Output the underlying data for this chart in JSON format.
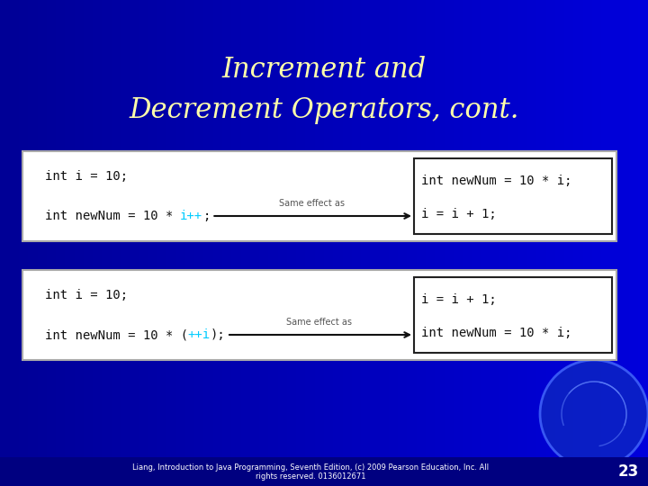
{
  "title_line1": "Increment and",
  "title_line2": "Decrement Operators, cont.",
  "title_color": "#FFFFAA",
  "bg_color_left": "#0000CC",
  "bg_color_right": "#0000FF",
  "footer_bg": "#000080",
  "footer_text": "Liang, Introduction to Java Programming, Seventh Edition, (c) 2009 Pearson Education, Inc. All\nrights reserved. 0136012671",
  "footer_page": "23",
  "box1_left_line1": "int i = 10;",
  "box1_left_line2_pre": "int newNum = 10 * ",
  "box1_left_line2_highlight": "i++",
  "box1_left_line2_post": ";",
  "box1_label": "Same effect as",
  "box1_right_line1": "int newNum = 10 * i;",
  "box1_right_line2": "i = i + 1;",
  "box2_left_line1": "int i = 10;",
  "box2_left_line2_pre": "int newNum = 10 * (",
  "box2_left_line2_highlight": "++i",
  "box2_left_line2_post": ");",
  "box2_label": "Same effect as",
  "box2_right_line1": "i = i + 1;",
  "box2_right_line2": "int newNum = 10 * i;",
  "code_color": "#111111",
  "highlight_color": "#00CCFF",
  "box_bg": "#FFFFFF",
  "box_border": "#AAAAAA",
  "right_box_border": "#222222",
  "arrow_color": "#111111",
  "label_color": "#555555",
  "title_fontsize": 22,
  "code_fontsize": 10,
  "label_fontsize": 7
}
